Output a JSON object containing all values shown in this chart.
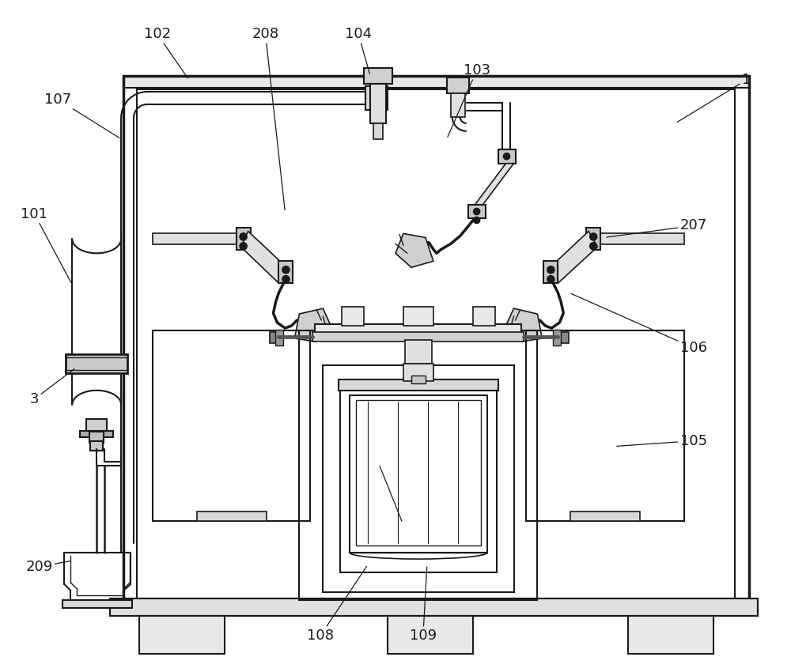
{
  "bg_color": "#ffffff",
  "lc": "#1a1a1a",
  "annotations": [
    [
      "1",
      945,
      100,
      855,
      155
    ],
    [
      "3",
      42,
      505,
      95,
      465
    ],
    [
      "101",
      42,
      270,
      90,
      360
    ],
    [
      "102",
      198,
      42,
      238,
      100
    ],
    [
      "103",
      603,
      88,
      565,
      175
    ],
    [
      "104",
      453,
      42,
      468,
      95
    ],
    [
      "105",
      878,
      558,
      778,
      565
    ],
    [
      "106",
      878,
      440,
      720,
      370
    ],
    [
      "107",
      72,
      125,
      152,
      175
    ],
    [
      "108",
      405,
      805,
      465,
      715
    ],
    [
      "109",
      535,
      805,
      540,
      715
    ],
    [
      "207",
      878,
      285,
      765,
      300
    ],
    [
      "208",
      335,
      42,
      360,
      268
    ],
    [
      "209",
      48,
      718,
      90,
      710
    ]
  ]
}
